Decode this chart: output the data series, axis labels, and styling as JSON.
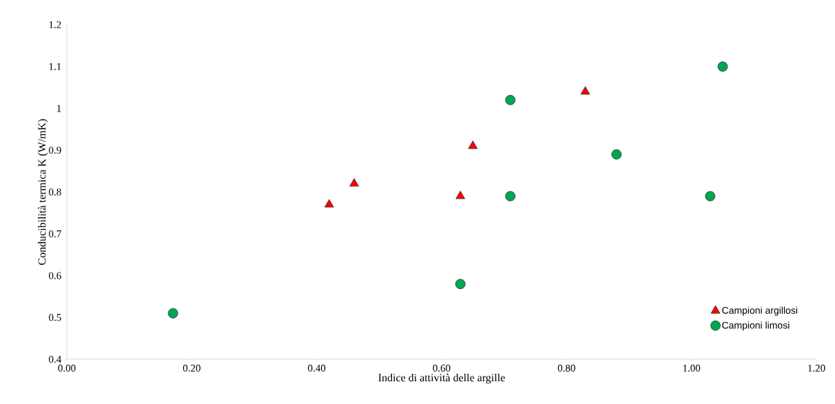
{
  "chart_data": {
    "type": "scatter",
    "xlabel": "Indice di attività delle argille",
    "ylabel": "Conducibilità termica K (W/mK)",
    "series": [
      {
        "name": "Campioni argillosi",
        "color": "#ff0000",
        "marker": "triangle",
        "x": [
          0.42,
          0.46,
          0.63,
          0.65,
          0.83
        ],
        "values": [
          0.77,
          0.82,
          0.79,
          0.91,
          1.04
        ]
      },
      {
        "name": "Campioni limosi",
        "color": "#00a651",
        "marker": "circle",
        "x": [
          0.17,
          0.63,
          0.71,
          0.71,
          0.88,
          1.03,
          1.05
        ],
        "values": [
          0.51,
          0.58,
          1.02,
          0.79,
          0.89,
          0.79,
          1.1
        ]
      }
    ],
    "xlim": [
      0,
      1.2
    ],
    "ylim": [
      0.4,
      1.2
    ],
    "xticks": [
      {
        "value": 0,
        "label": "0.00"
      },
      {
        "value": 0.2,
        "label": "0.20"
      },
      {
        "value": 0.4,
        "label": "0.40"
      },
      {
        "value": 0.6,
        "label": "0.60"
      },
      {
        "value": 0.8,
        "label": "0.80"
      },
      {
        "value": 1,
        "label": "1.00"
      },
      {
        "value": 1.2,
        "label": "1.20"
      }
    ],
    "yticks": [
      0.4,
      0.5,
      0.6,
      0.7,
      0.8,
      0.9,
      1,
      1.1,
      1.2
    ],
    "grid": false,
    "legend": "bottom right"
  }
}
